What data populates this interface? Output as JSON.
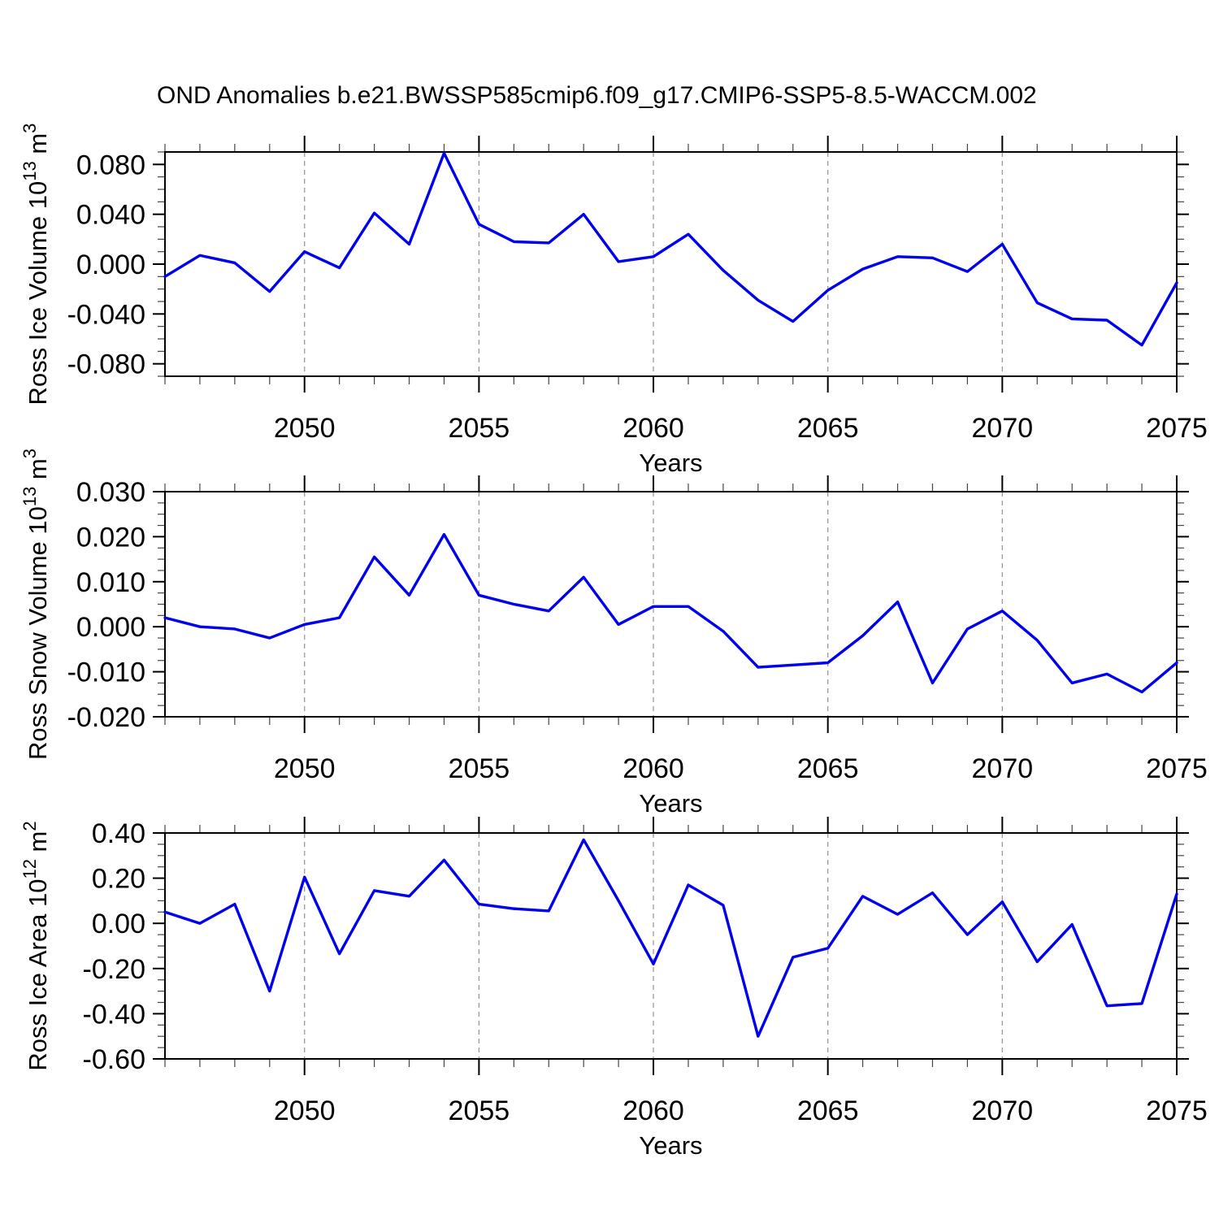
{
  "title": "OND Anomalies b.e21.BWSSP585cmip6.f09_g17.CMIP6-SSP5-8.5-WACCM.002",
  "colors": {
    "line": "#0000ee",
    "grid": "#999999",
    "axis": "#000000",
    "minor_tick": "#444444",
    "background": "#ffffff"
  },
  "chart_data": [
    {
      "id": "ross-ice-volume",
      "type": "line",
      "ylabel": "Ross Ice Volume 10^13 m^3",
      "ylabel_segments": [
        {
          "t": "Ross Ice Volume 10"
        },
        {
          "t": "13",
          "sup": true
        },
        {
          "t": " m"
        },
        {
          "t": "3",
          "sup": true
        }
      ],
      "xlabel": "Years",
      "x": [
        2046,
        2047,
        2048,
        2049,
        2050,
        2051,
        2052,
        2053,
        2054,
        2055,
        2056,
        2057,
        2058,
        2059,
        2060,
        2061,
        2062,
        2063,
        2064,
        2065,
        2066,
        2067,
        2068,
        2069,
        2070,
        2071,
        2072,
        2073,
        2074,
        2075
      ],
      "values": [
        -0.01,
        0.007,
        0.001,
        -0.022,
        0.01,
        -0.003,
        0.041,
        0.016,
        0.089,
        0.032,
        0.018,
        0.017,
        0.04,
        0.002,
        0.006,
        0.024,
        -0.005,
        -0.029,
        -0.046,
        -0.021,
        -0.004,
        0.006,
        0.005,
        -0.006,
        0.016,
        -0.031,
        -0.044,
        -0.045,
        -0.065,
        -0.015
      ],
      "xlim": [
        2046,
        2075
      ],
      "ylim": [
        -0.09,
        0.09
      ],
      "yticks": [
        0.08,
        0.04,
        0,
        -0.04,
        -0.08
      ],
      "ytick_labels": [
        "0.080",
        "0.040",
        "0.000",
        "-0.040",
        "-0.080"
      ],
      "y_minor_step": 0.01,
      "xticks": [
        2050,
        2055,
        2060,
        2065,
        2070,
        2075
      ],
      "xtick_labels": [
        "2050",
        "2055",
        "2060",
        "2065",
        "2070",
        "2075"
      ],
      "x_minor_step": 1,
      "grid_x": [
        2050,
        2055,
        2060,
        2065,
        2070
      ],
      "grid_on": true,
      "legend": null
    },
    {
      "id": "ross-snow-volume",
      "type": "line",
      "ylabel": "Ross Snow Volume 10^13 m^3",
      "ylabel_segments": [
        {
          "t": "Ross Snow Volume 10"
        },
        {
          "t": "13",
          "sup": true
        },
        {
          "t": " m"
        },
        {
          "t": "3",
          "sup": true
        }
      ],
      "xlabel": "Years",
      "x": [
        2046,
        2047,
        2048,
        2049,
        2050,
        2051,
        2052,
        2053,
        2054,
        2055,
        2056,
        2057,
        2058,
        2059,
        2060,
        2061,
        2062,
        2063,
        2064,
        2065,
        2066,
        2067,
        2068,
        2069,
        2070,
        2071,
        2072,
        2073,
        2074,
        2075
      ],
      "values": [
        0.002,
        0.0,
        -0.0005,
        -0.0025,
        0.0005,
        0.002,
        0.0155,
        0.007,
        0.0205,
        0.007,
        0.005,
        0.0035,
        0.011,
        0.0005,
        0.0045,
        0.0045,
        -0.001,
        -0.009,
        -0.0085,
        -0.008,
        -0.002,
        0.0055,
        -0.0125,
        -0.0005,
        0.0035,
        -0.003,
        -0.0125,
        -0.0105,
        -0.0145,
        -0.008
      ],
      "xlim": [
        2046,
        2075
      ],
      "ylim": [
        -0.02,
        0.03
      ],
      "yticks": [
        0.03,
        0.02,
        0.01,
        0,
        -0.01,
        -0.02
      ],
      "ytick_labels": [
        "0.030",
        "0.020",
        "0.010",
        "0.000",
        "-0.010",
        "-0.020"
      ],
      "y_minor_step": 0.0025,
      "xticks": [
        2050,
        2055,
        2060,
        2065,
        2070,
        2075
      ],
      "xtick_labels": [
        "2050",
        "2055",
        "2060",
        "2065",
        "2070",
        "2075"
      ],
      "x_minor_step": 1,
      "grid_x": [
        2050,
        2055,
        2060,
        2065,
        2070
      ],
      "grid_on": true,
      "legend": null
    },
    {
      "id": "ross-ice-area",
      "type": "line",
      "ylabel": "Ross Ice Area 10^12 m^2",
      "ylabel_segments": [
        {
          "t": "Ross Ice Area 10"
        },
        {
          "t": "12",
          "sup": true
        },
        {
          "t": " m"
        },
        {
          "t": "2",
          "sup": true
        }
      ],
      "xlabel": "Years",
      "x": [
        2046,
        2047,
        2048,
        2049,
        2050,
        2051,
        2052,
        2053,
        2054,
        2055,
        2056,
        2057,
        2058,
        2059,
        2060,
        2061,
        2062,
        2063,
        2064,
        2065,
        2066,
        2067,
        2068,
        2069,
        2070,
        2071,
        2072,
        2073,
        2074,
        2075
      ],
      "values": [
        0.05,
        0.0,
        0.085,
        -0.3,
        0.205,
        -0.135,
        0.145,
        0.12,
        0.28,
        0.085,
        0.065,
        0.055,
        0.37,
        0.1,
        -0.18,
        0.17,
        0.08,
        -0.5,
        -0.15,
        -0.11,
        0.12,
        0.04,
        0.135,
        -0.05,
        0.095,
        -0.17,
        -0.005,
        -0.365,
        -0.355,
        0.13
      ],
      "xlim": [
        2046,
        2075
      ],
      "ylim": [
        -0.6,
        0.4
      ],
      "yticks": [
        0.4,
        0.2,
        0,
        -0.2,
        -0.4,
        -0.6
      ],
      "ytick_labels": [
        "0.40",
        "0.20",
        "0.00",
        "-0.20",
        "-0.40",
        "-0.60"
      ],
      "y_minor_step": 0.05,
      "xticks": [
        2050,
        2055,
        2060,
        2065,
        2070,
        2075
      ],
      "xtick_labels": [
        "2050",
        "2055",
        "2060",
        "2065",
        "2070",
        "2075"
      ],
      "x_minor_step": 1,
      "grid_x": [
        2050,
        2055,
        2060,
        2065,
        2070
      ],
      "grid_on": true,
      "legend": null
    }
  ]
}
